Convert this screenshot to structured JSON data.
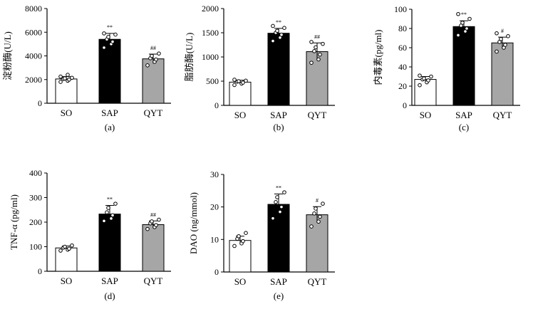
{
  "chart_data": [
    {
      "type": "bar",
      "panel_label": "(a)",
      "ylabel": "淀粉酶(U/L)",
      "ylim": [
        0,
        8000
      ],
      "yticks": [
        "0",
        "2000",
        "4000",
        "6000",
        "8000"
      ],
      "categories": [
        "SO",
        "SAP",
        "QYT"
      ],
      "values": [
        2050,
        5400,
        3750
      ],
      "errors": [
        200,
        500,
        400
      ],
      "fills": [
        "#ffffff",
        "#000000",
        "#a6a6a6"
      ],
      "significance": [
        "",
        "**",
        "##"
      ],
      "points": [
        [
          1800,
          1900,
          2000,
          2050,
          2100,
          2150,
          2250,
          2400
        ],
        [
          4700,
          5000,
          5200,
          5400,
          5600,
          5800,
          5900
        ],
        [
          3200,
          3500,
          3700,
          3800,
          4000,
          4200
        ]
      ]
    },
    {
      "type": "bar",
      "panel_label": "(b)",
      "ylabel": "脂肪酶(U/L)",
      "ylim": [
        0,
        2000
      ],
      "yticks": [
        "0",
        "500",
        "1000",
        "1500",
        "2000"
      ],
      "categories": [
        "SO",
        "SAP",
        "QYT"
      ],
      "values": [
        480,
        1490,
        1110
      ],
      "errors": [
        40,
        100,
        180
      ],
      "fills": [
        "#ffffff",
        "#000000",
        "#a6a6a6"
      ],
      "significance": [
        "",
        "**",
        "##"
      ],
      "points": [
        [
          420,
          450,
          470,
          490,
          500,
          510,
          530
        ],
        [
          1330,
          1400,
          1460,
          1500,
          1540,
          1600,
          1640
        ],
        [
          880,
          950,
          1050,
          1120,
          1200,
          1270,
          1310
        ]
      ]
    },
    {
      "type": "bar",
      "panel_label": "(c)",
      "ylabel": "内毒素(pg/ml)",
      "ylim": [
        0,
        100
      ],
      "yticks": [
        "0",
        "20",
        "40",
        "60",
        "80",
        "100"
      ],
      "categories": [
        "SO",
        "SAP",
        "QYT"
      ],
      "values": [
        27,
        82,
        65
      ],
      "errors": [
        3,
        6,
        6
      ],
      "fills": [
        "#ffffff",
        "#000000",
        "#a6a6a6"
      ],
      "significance": [
        "",
        "**",
        "#"
      ],
      "points": [
        [
          21,
          24,
          26,
          27,
          28,
          30,
          31
        ],
        [
          73,
          77,
          80,
          83,
          86,
          90,
          95
        ],
        [
          56,
          60,
          63,
          66,
          69,
          72,
          75
        ]
      ]
    },
    {
      "type": "bar",
      "panel_label": "(d)",
      "ylabel": "TNF-α (pg/ml)",
      "ylim": [
        0,
        400
      ],
      "yticks": [
        "0",
        "100",
        "200",
        "300",
        "400"
      ],
      "categories": [
        "SO",
        "SAP",
        "QYT"
      ],
      "values": [
        95,
        233,
        190
      ],
      "errors": [
        8,
        35,
        15
      ],
      "fills": [
        "#ffffff",
        "#000000",
        "#a6a6a6"
      ],
      "significance": [
        "",
        "**",
        "##"
      ],
      "points": [
        [
          84,
          88,
          92,
          96,
          100,
          105
        ],
        [
          205,
          215,
          228,
          240,
          258,
          275
        ],
        [
          172,
          180,
          188,
          195,
          203,
          210
        ]
      ]
    },
    {
      "type": "bar",
      "panel_label": "(e)",
      "ylabel": "DAO (ng/mmol)",
      "ylim": [
        0,
        30
      ],
      "yticks": [
        "0",
        "10",
        "20",
        "30"
      ],
      "categories": [
        "SO",
        "SAP",
        "QYT"
      ],
      "values": [
        9.7,
        20.8,
        17.6
      ],
      "errors": [
        1.3,
        3.2,
        2.5
      ],
      "fills": [
        "#ffffff",
        "#000000",
        "#a6a6a6"
      ],
      "significance": [
        "",
        "**",
        "#"
      ],
      "points": [
        [
          8.0,
          8.8,
          9.5,
          10.2,
          11.0,
          12.0
        ],
        [
          16.5,
          18.5,
          20.0,
          21.5,
          23.0,
          24.5
        ],
        [
          14.0,
          15.5,
          17.0,
          18.0,
          19.5,
          21.0
        ]
      ]
    }
  ]
}
